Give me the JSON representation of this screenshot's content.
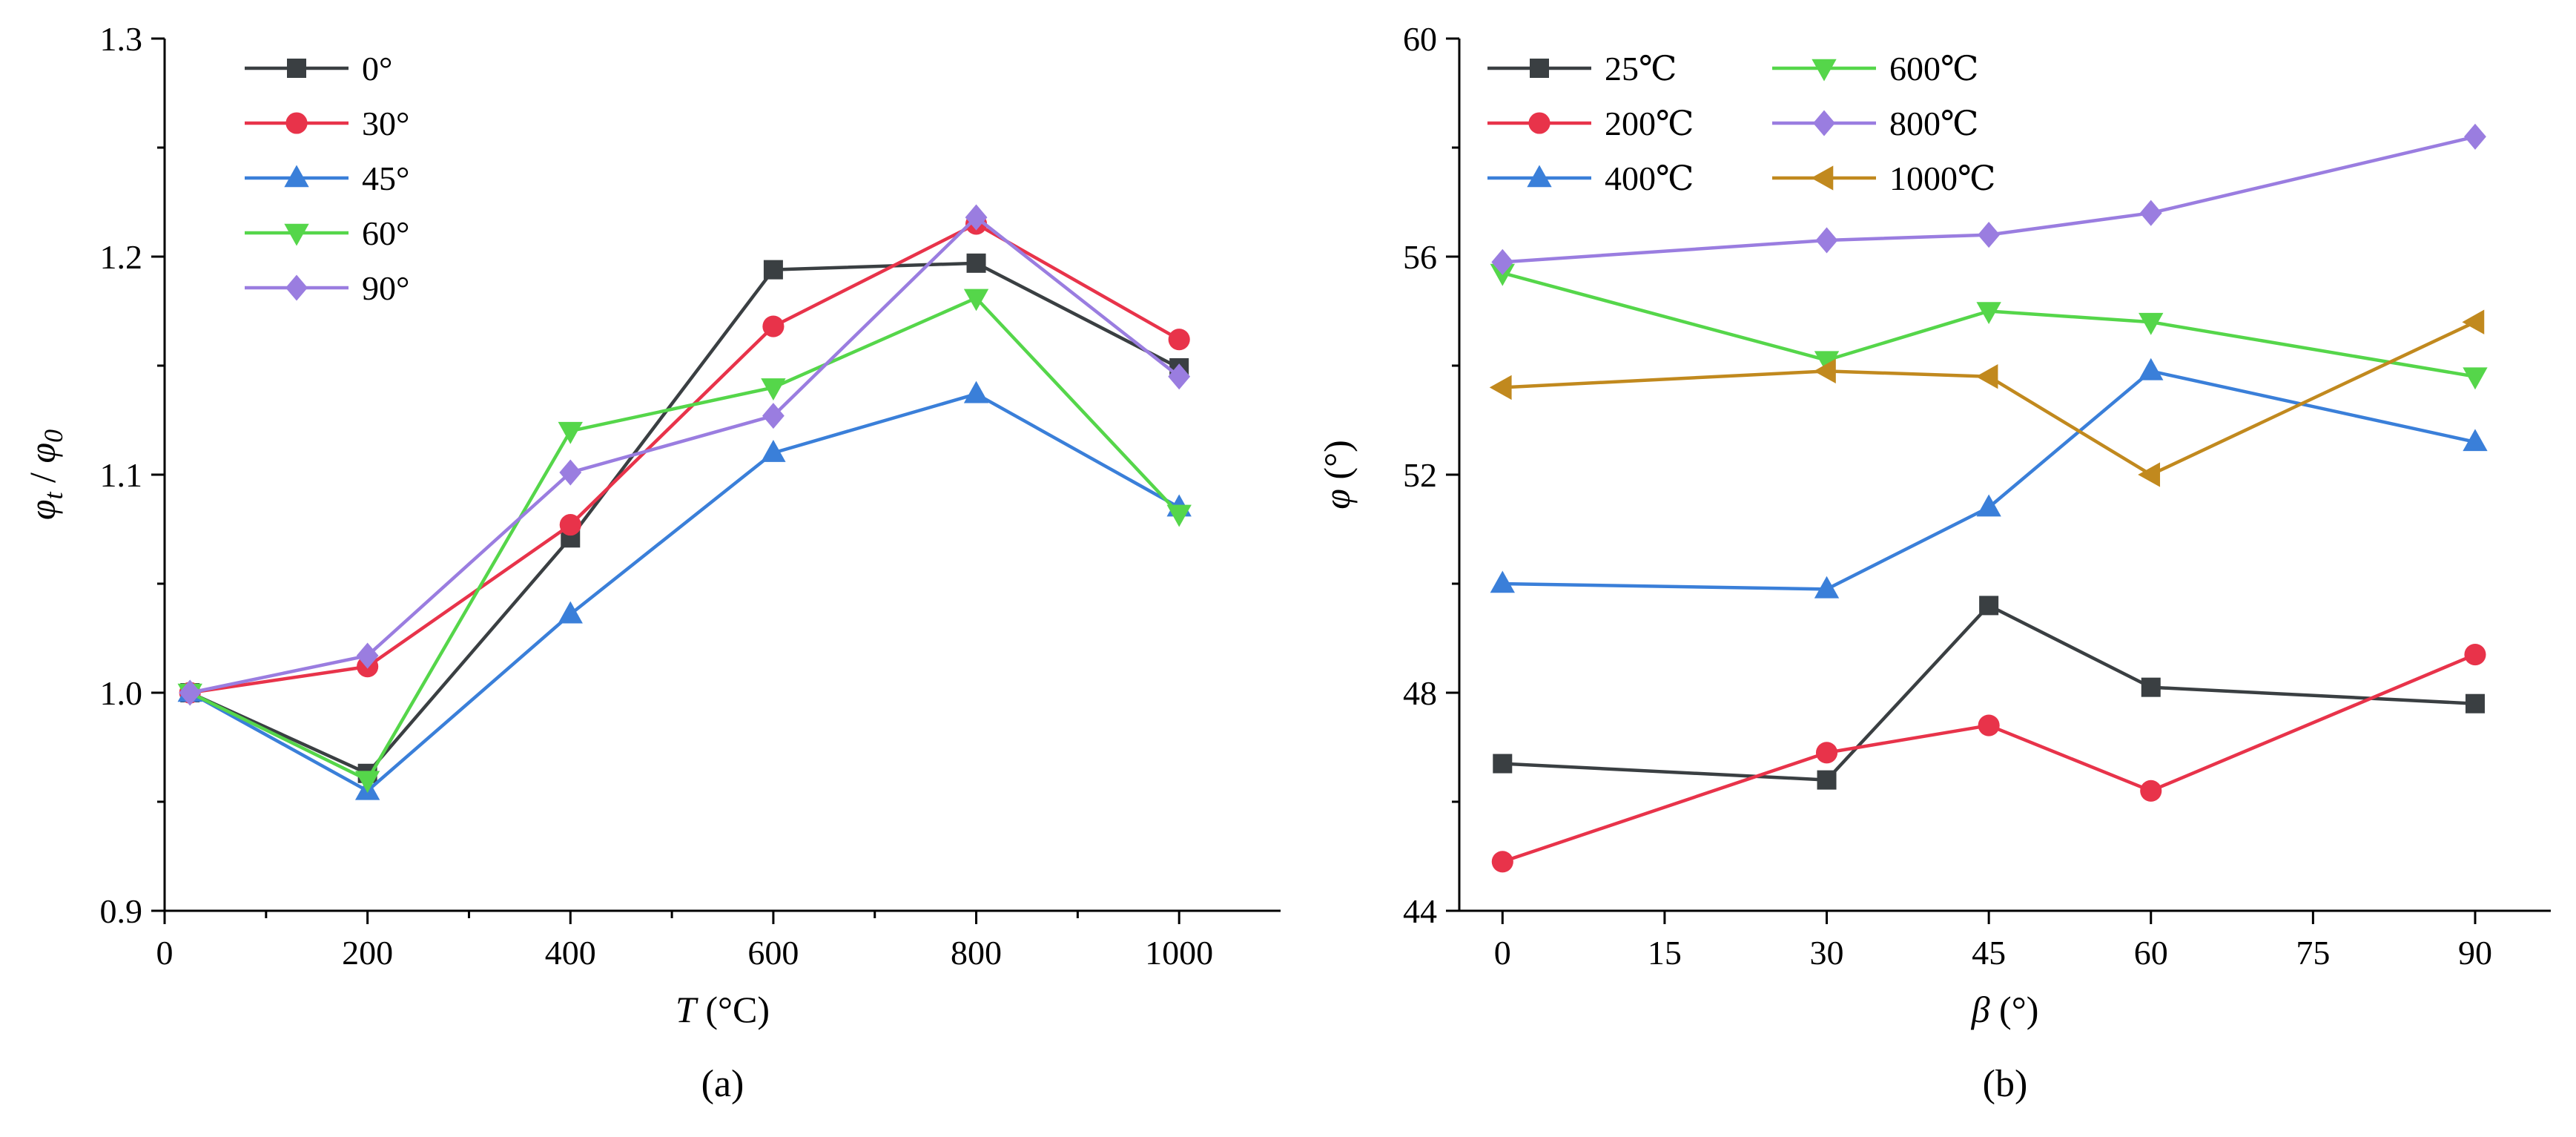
{
  "chart_data": [
    {
      "type": "line",
      "panel_label": "(a)",
      "xlabel_var": "T",
      "xlabel_unit": " (°C)",
      "ylabel_var": "φ",
      "ylabel_sub": "t",
      "ylabel_sep": " / ",
      "ylabel_var2": "φ",
      "ylabel_sub2": "0",
      "xlim": [
        0,
        1100
      ],
      "ylim": [
        0.9,
        1.3
      ],
      "xticks": [
        0,
        200,
        400,
        600,
        800,
        1000
      ],
      "xtick_labels": [
        "0",
        "200",
        "400",
        "600",
        "800",
        "1000"
      ],
      "yticks": [
        0.9,
        1.0,
        1.1,
        1.2,
        1.3
      ],
      "ytick_labels": [
        "0.9",
        "1.0",
        "1.1",
        "1.2",
        "1.3"
      ],
      "legend_position": "top-left",
      "x": [
        25,
        200,
        400,
        600,
        800,
        1000
      ],
      "series": [
        {
          "name": "0°",
          "color": "#3a3f42",
          "marker": "square",
          "values": [
            1.0,
            0.963,
            1.071,
            1.194,
            1.197,
            1.149
          ]
        },
        {
          "name": "30°",
          "color": "#e8334a",
          "marker": "circle",
          "values": [
            1.0,
            1.012,
            1.077,
            1.168,
            1.215,
            1.162
          ]
        },
        {
          "name": "45°",
          "color": "#3a7fd9",
          "marker": "triangle-up",
          "values": [
            1.0,
            0.955,
            1.036,
            1.11,
            1.137,
            1.085
          ]
        },
        {
          "name": "60°",
          "color": "#55d64a",
          "marker": "triangle-down",
          "values": [
            1.0,
            0.96,
            1.12,
            1.14,
            1.181,
            1.082
          ]
        },
        {
          "name": "90°",
          "color": "#9a7de0",
          "marker": "diamond",
          "values": [
            1.0,
            1.017,
            1.101,
            1.127,
            1.218,
            1.145
          ]
        }
      ]
    },
    {
      "type": "line",
      "panel_label": "(b)",
      "xlabel_var": "β",
      "xlabel_unit": " (°)",
      "ylabel_var": "φ",
      "ylabel_unit": " (°)",
      "xlim": [
        -4,
        97
      ],
      "ylim": [
        44,
        60
      ],
      "xticks": [
        0,
        15,
        30,
        45,
        60,
        75,
        90
      ],
      "xtick_labels": [
        "0",
        "15",
        "30",
        "45",
        "60",
        "75",
        "90"
      ],
      "yticks": [
        44,
        48,
        52,
        56,
        60
      ],
      "ytick_labels": [
        "44",
        "48",
        "52",
        "56",
        "60"
      ],
      "legend_position": "top-left",
      "x": [
        0,
        30,
        45,
        60,
        90
      ],
      "series": [
        {
          "name": "25℃",
          "color": "#3a3f42",
          "marker": "square",
          "values": [
            46.7,
            46.4,
            49.6,
            48.1,
            47.8
          ]
        },
        {
          "name": "200℃",
          "color": "#e8334a",
          "marker": "circle",
          "values": [
            44.9,
            46.9,
            47.4,
            46.2,
            48.7
          ]
        },
        {
          "name": "400℃",
          "color": "#3a7fd9",
          "marker": "triangle-up",
          "values": [
            50.0,
            49.9,
            51.4,
            53.9,
            52.6
          ]
        },
        {
          "name": "600℃",
          "color": "#55d64a",
          "marker": "triangle-down",
          "values": [
            55.7,
            54.1,
            55.0,
            54.8,
            53.8
          ]
        },
        {
          "name": "800℃",
          "color": "#9a7de0",
          "marker": "diamond",
          "values": [
            55.9,
            56.3,
            56.4,
            56.8,
            58.2
          ]
        },
        {
          "name": "1000℃",
          "color": "#c1891e",
          "marker": "triangle-left",
          "values": [
            53.6,
            53.9,
            53.8,
            52.0,
            54.8
          ]
        }
      ]
    }
  ]
}
